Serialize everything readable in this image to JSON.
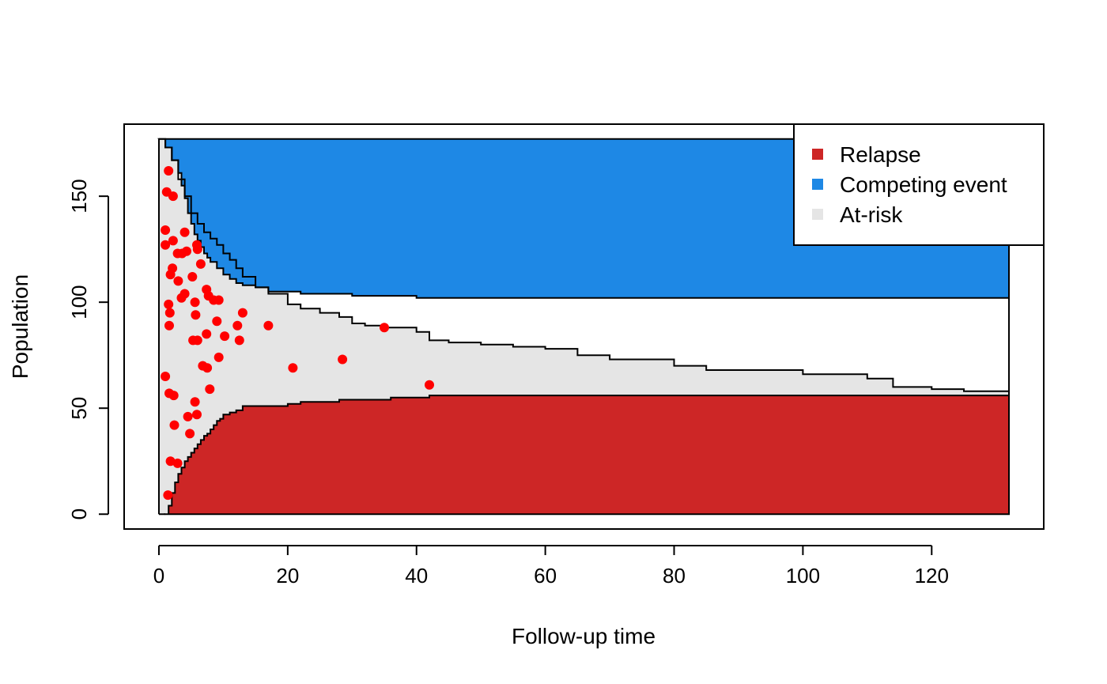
{
  "chart_data": {
    "type": "area",
    "title": "",
    "xlabel": "Follow-up time",
    "ylabel": "Population",
    "xlim": [
      -5.4,
      137.4
    ],
    "ylim": [
      -7,
      184
    ],
    "x_ticks": [
      0,
      20,
      40,
      60,
      80,
      100,
      120
    ],
    "y_ticks": [
      0,
      50,
      100,
      150
    ],
    "total_population": 177,
    "x_max": 132,
    "grid": false,
    "legend_position": "top-right",
    "legend": [
      {
        "label": "Relapse",
        "color": "#CD2626"
      },
      {
        "label": "Competing event",
        "color": "#1E88E5"
      },
      {
        "label": "At-risk",
        "color": "#E5E5E5"
      }
    ],
    "series": [
      {
        "name": "Relapse",
        "color": "#CD2626",
        "x": [
          1.0,
          1.5,
          2.0,
          2.5,
          3.0,
          3.5,
          4.0,
          4.5,
          5.0,
          5.5,
          6.0,
          6.5,
          7.0,
          7.5,
          8.0,
          8.5,
          9.0,
          9.5,
          10.0,
          11.0,
          12.0,
          13.0,
          15.0,
          17.0,
          20.0,
          22.0,
          25.0,
          28.0,
          32.0,
          36.0,
          40.0,
          42.0,
          60.0,
          100.0,
          132.0
        ],
        "y": [
          0,
          4,
          10,
          15,
          19,
          22,
          25,
          27,
          29,
          31,
          33,
          35,
          37,
          38,
          40,
          42,
          44,
          45,
          47,
          48,
          49,
          51,
          51,
          51,
          52,
          53,
          53,
          54,
          54,
          55,
          55,
          56,
          56,
          56,
          56
        ]
      },
      {
        "name": "Competing event",
        "color": "#1E88E5",
        "x": [
          0.0,
          1.0,
          2.0,
          3.0,
          3.5,
          4.0,
          4.5,
          5.0,
          5.5,
          6.0,
          6.5,
          7.0,
          7.5,
          8.0,
          9.0,
          10.0,
          11.0,
          12.0,
          13.0,
          15.0,
          17.0,
          20.0,
          22.0,
          25.0,
          30.0,
          40.0,
          60.0,
          100.0,
          132.0
        ],
        "y": [
          0,
          4,
          10,
          16,
          22,
          28,
          35,
          40,
          45,
          48,
          51,
          54,
          56,
          58,
          61,
          64,
          66,
          68,
          69,
          70,
          72,
          72,
          73,
          73,
          74,
          75,
          75,
          75,
          75
        ]
      },
      {
        "name": "At-risk",
        "color": "#E5E5E5",
        "x": [
          0.0,
          1.0,
          2.0,
          3.0,
          4.0,
          5.0,
          6.0,
          7.0,
          8.0,
          9.0,
          10.0,
          11.0,
          12.0,
          13.0,
          15.0,
          17.0,
          20.0,
          22.0,
          25.0,
          28.0,
          30.0,
          32.0,
          35.0,
          40.0,
          42.0,
          45.0,
          50.0,
          55.0,
          60.0,
          65.0,
          70.0,
          80.0,
          85.0,
          100.0,
          110.0,
          114.0,
          120.0,
          125.0,
          132.0
        ],
        "y": [
          177,
          173,
          167,
          158,
          150,
          142,
          137,
          133,
          130,
          127,
          123,
          120,
          116,
          112,
          107,
          104,
          99,
          97,
          95,
          93,
          90,
          89,
          88,
          86,
          82,
          81,
          80,
          79,
          78,
          75,
          73,
          70,
          68,
          66,
          64,
          60,
          59,
          58,
          56
        ]
      }
    ],
    "relapse_curve": {
      "x": [
        1.0,
        1.5,
        2.0,
        2.5,
        3.0,
        3.5,
        4.0,
        4.5,
        5.0,
        5.5,
        6.0,
        6.5,
        7.0,
        7.5,
        8.0,
        8.5,
        9.0,
        9.5,
        10.0,
        11.0,
        12.0,
        13.0,
        15.0,
        17.0,
        20.0,
        22.0,
        25.0,
        28.0,
        32.0,
        36.0,
        40.0,
        42.0,
        60.0,
        100.0,
        132.0
      ],
      "y": [
        0,
        4,
        10,
        15,
        19,
        22,
        25,
        27,
        29,
        31,
        33,
        35,
        37,
        38,
        40,
        42,
        44,
        45,
        47,
        48,
        49,
        51,
        51,
        51,
        52,
        53,
        53,
        54,
        54,
        55,
        55,
        56,
        56,
        56,
        56
      ]
    },
    "upper_curve": {
      "x": [
        0.0,
        1.0,
        2.0,
        3.0,
        3.5,
        4.0,
        4.5,
        5.0,
        5.5,
        6.0,
        6.5,
        7.0,
        7.5,
        8.0,
        9.0,
        10.0,
        11.0,
        12.0,
        13.0,
        15.0,
        17.0,
        20.0,
        22.0,
        25.0,
        30.0,
        40.0,
        60.0,
        100.0,
        132.0
      ],
      "y": [
        177,
        173,
        167,
        161,
        155,
        149,
        142,
        137,
        132,
        129,
        126,
        123,
        121,
        119,
        116,
        113,
        111,
        109,
        108,
        107,
        105,
        105,
        104,
        104,
        103,
        102,
        102,
        102,
        102
      ]
    },
    "atrisk_curve": {
      "x": [
        0.0,
        1.0,
        2.0,
        3.0,
        4.0,
        5.0,
        6.0,
        7.0,
        8.0,
        9.0,
        10.0,
        11.0,
        12.0,
        13.0,
        15.0,
        17.0,
        20.0,
        22.0,
        25.0,
        28.0,
        30.0,
        32.0,
        35.0,
        40.0,
        42.0,
        45.0,
        50.0,
        55.0,
        60.0,
        65.0,
        70.0,
        80.0,
        85.0,
        100.0,
        110.0,
        114.0,
        120.0,
        125.0,
        132.0
      ],
      "y": [
        177,
        173,
        167,
        158,
        150,
        142,
        137,
        133,
        130,
        127,
        123,
        120,
        116,
        112,
        107,
        104,
        99,
        97,
        95,
        93,
        90,
        89,
        88,
        86,
        82,
        81,
        80,
        79,
        78,
        75,
        73,
        70,
        68,
        66,
        64,
        60,
        59,
        58,
        56
      ]
    },
    "points": {
      "color": "#FF0000",
      "x": [
        1.5,
        1.2,
        2.2,
        1.0,
        4.0,
        1.0,
        2.2,
        5.9,
        6.0,
        4.3,
        2.9,
        3.6,
        2.1,
        6.5,
        1.8,
        3.0,
        5.2,
        7.4,
        4.0,
        3.5,
        7.7,
        8.5,
        9.3,
        1.5,
        5.6,
        1.7,
        5.7,
        9.0,
        1.6,
        12.2,
        17.0,
        35.0,
        13.0,
        7.4,
        10.2,
        5.3,
        6.0,
        12.5,
        9.3,
        6.8,
        7.5,
        20.8,
        28.5,
        1.0,
        7.9,
        42.0,
        1.6,
        2.3,
        5.6,
        5.9,
        4.5,
        2.4,
        4.8,
        1.8,
        2.9,
        1.4
      ],
      "y": [
        162,
        152,
        150,
        134,
        133,
        127,
        129,
        127,
        125,
        124,
        123,
        123,
        116,
        118,
        113,
        110,
        112,
        106,
        104,
        102,
        103,
        101,
        101,
        99,
        100,
        95,
        94,
        91,
        89,
        89,
        89,
        88,
        95,
        85,
        84,
        82,
        82,
        82,
        74,
        70,
        69,
        69,
        73,
        65,
        59,
        61,
        57,
        56,
        53,
        47,
        46,
        42,
        38,
        25,
        24,
        9
      ]
    }
  }
}
